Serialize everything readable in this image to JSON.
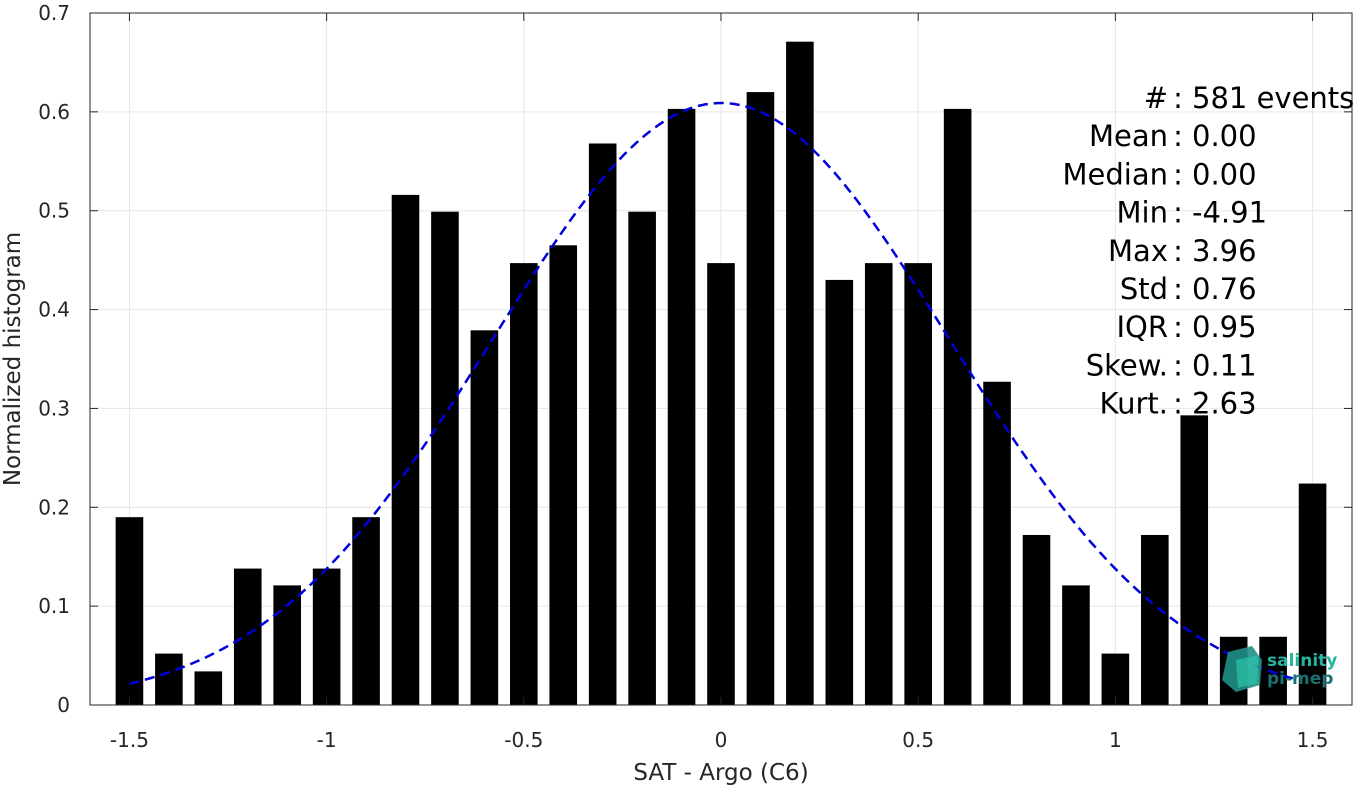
{
  "chart_data": {
    "type": "bar",
    "xlabel": "SAT - Argo (C6)",
    "ylabel": "Normalized histogram",
    "xlim": [
      -1.6,
      1.6
    ],
    "ylim": [
      0,
      0.7
    ],
    "xticks": [
      -1.5,
      -1,
      -0.5,
      0,
      0.5,
      1,
      1.5
    ],
    "xtick_labels": [
      "-1.5",
      "-1",
      "-0.5",
      "0",
      "0.5",
      "1",
      "1.5"
    ],
    "yticks": [
      0,
      0.1,
      0.2,
      0.3,
      0.4,
      0.5,
      0.6,
      0.7
    ],
    "ytick_labels": [
      "0",
      "0.1",
      "0.2",
      "0.3",
      "0.4",
      "0.5",
      "0.6",
      "0.7"
    ],
    "grid": true,
    "bar_width": 0.07,
    "bar_color": "#000000",
    "bars": {
      "x": [
        -1.5,
        -1.4,
        -1.3,
        -1.2,
        -1.1,
        -1.0,
        -0.9,
        -0.8,
        -0.7,
        -0.6,
        -0.5,
        -0.4,
        -0.3,
        -0.2,
        -0.1,
        0.0,
        0.1,
        0.2,
        0.3,
        0.4,
        0.5,
        0.6,
        0.7,
        0.8,
        0.9,
        1.0,
        1.1,
        1.2,
        1.3,
        1.4,
        1.5
      ],
      "values": [
        0.19,
        0.052,
        0.034,
        0.138,
        0.121,
        0.138,
        0.19,
        0.516,
        0.499,
        0.379,
        0.447,
        0.465,
        0.568,
        0.499,
        0.603,
        0.447,
        0.62,
        0.671,
        0.43,
        0.447,
        0.447,
        0.603,
        0.327,
        0.172,
        0.121,
        0.052,
        0.172,
        0.293,
        0.069,
        0.069,
        0.224
      ]
    },
    "fit_curve": {
      "style": "dashed",
      "color": "#0000dd",
      "mean": 0.0,
      "std": 0.58,
      "peak": 0.609,
      "x_range": [
        -1.5,
        1.45
      ]
    }
  },
  "stats": [
    {
      "label": "#",
      "sep": ":",
      "value": "581 events"
    },
    {
      "label": "Mean",
      "sep": ":",
      "value": "0.00"
    },
    {
      "label": "Median",
      "sep": ":",
      "value": "0.00"
    },
    {
      "label": "Min",
      "sep": ":",
      "value": "-4.91"
    },
    {
      "label": "Max",
      "sep": ":",
      "value": "3.96"
    },
    {
      "label": "Std",
      "sep": ":",
      "value": "0.76"
    },
    {
      "label": "IQR",
      "sep": ":",
      "value": "0.95"
    },
    {
      "label": "Skew.",
      "sep": ":",
      "value": "0.11"
    },
    {
      "label": "Kurt.",
      "sep": ":",
      "value": "2.63"
    }
  ],
  "logo": {
    "line1": "salinity",
    "line2": "pi-mep",
    "color1": "#22b5a0",
    "color2": "#1a6f72"
  }
}
